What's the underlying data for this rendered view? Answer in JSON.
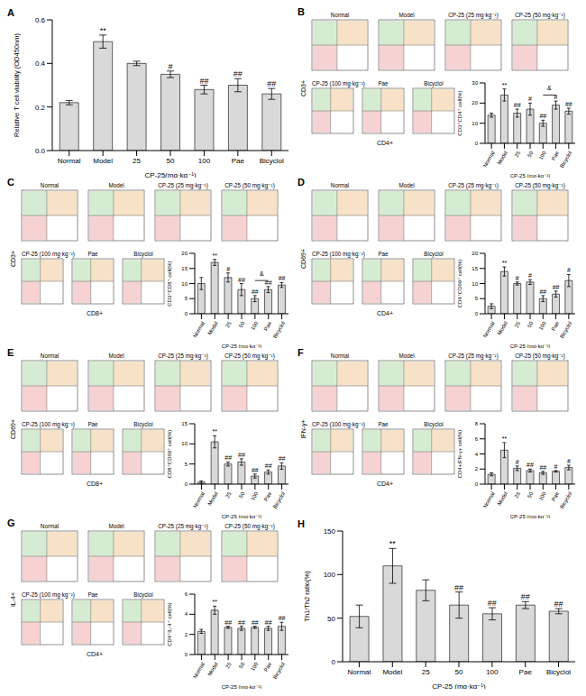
{
  "chart_data": [
    {
      "panel": "A",
      "type": "bar",
      "y_label": "Relative T cell viability (OD450nm)",
      "x_label": "CP-25(mg·kg⁻¹)",
      "categories": [
        "Normal",
        "Model",
        "25",
        "50",
        "100",
        "Pae",
        "Bicyclol"
      ],
      "values": [
        0.22,
        0.5,
        0.4,
        0.35,
        0.28,
        0.3,
        0.26
      ],
      "error": [
        0.01,
        0.03,
        0.01,
        0.015,
        0.02,
        0.03,
        0.025
      ],
      "annotations": [
        null,
        "**",
        null,
        "#",
        "##",
        "##",
        "##"
      ],
      "color": "#d9d9d9",
      "ylim": [
        0,
        0.6
      ],
      "yticks": [
        {
          "value": 0,
          "label": "0.0"
        },
        0.2,
        0.4,
        0.6
      ]
    },
    {
      "panel": "B",
      "type": "bar",
      "flow_plots": {
        "titles": [
          "Normal",
          "Model",
          "CP-25 (25 mg·kg⁻¹)",
          "CP-25 (50 mg·kg⁻¹)",
          "CP-25 (100 mg·kg⁻¹)",
          "Pae",
          "Bicyclol"
        ],
        "x_label": "CD4+",
        "y_label": "CD3+"
      },
      "y_label": "CD3⁺CD4⁺ cell(%)",
      "x_label": "CP-25 (mg·kg⁻¹)",
      "categories": [
        "Normal",
        "Model",
        "25",
        "50",
        "100",
        "Pae",
        "Bicyclol"
      ],
      "values": [
        14,
        24,
        15,
        17,
        10,
        19,
        16
      ],
      "error": [
        1,
        3,
        2,
        3,
        1.5,
        2,
        1.5
      ],
      "annotations": [
        null,
        "**",
        "##",
        "#",
        "##",
        "#",
        "##"
      ],
      "bracket": {
        "from": "100",
        "to": "Pae",
        "label": "&"
      },
      "color": "#d9d9d9",
      "ylim": [
        0,
        30
      ],
      "yticks": [
        0,
        10,
        20,
        30
      ]
    },
    {
      "panel": "C",
      "type": "bar",
      "flow_plots": {
        "titles": [
          "Normal",
          "Model",
          "CP-25 (25 mg·kg⁻¹)",
          "CP-25 (50 mg·kg⁻¹)",
          "CP-25 (100 mg·kg⁻¹)",
          "Pae",
          "Bicyclol"
        ],
        "x_label": "CD8+",
        "y_label": "CD3+"
      },
      "y_label": "CD3⁺CD8⁺ cell(%)",
      "x_label": "CP-25 (mg·kg⁻¹)",
      "categories": [
        "Normal",
        "Model",
        "25",
        "50",
        "100",
        "Pae",
        "Bicyclol"
      ],
      "values": [
        10,
        17,
        12,
        8,
        5,
        8,
        9.5
      ],
      "error": [
        2,
        1,
        1.5,
        2,
        1,
        1,
        0.8
      ],
      "annotations": [
        null,
        "**",
        "#",
        "##",
        "##",
        "##",
        "##"
      ],
      "bracket": {
        "from": "100",
        "to": "Pae",
        "label": "&"
      },
      "color": "#d9d9d9",
      "ylim": [
        0,
        20
      ],
      "yticks": [
        0,
        5,
        10,
        15,
        20
      ]
    },
    {
      "panel": "D",
      "type": "bar",
      "flow_plots": {
        "titles": [
          "Normal",
          "Model",
          "CP-25 (25 mg·kg⁻¹)",
          "CP-25 (50 mg·kg⁻¹)",
          "CP-25 (100 mg·kg⁻¹)",
          "Pae",
          "Bicyclol"
        ],
        "x_label": "CD4+",
        "y_label": "CD69+"
      },
      "y_label": "CD4⁺CD69⁺ cell(%)",
      "x_label": "CP-25 (mg·kg⁻¹)",
      "categories": [
        "Normal",
        "Model",
        "25",
        "50",
        "100",
        "Pae",
        "Bicyclol"
      ],
      "values": [
        2.5,
        14,
        10,
        10.5,
        5,
        6.5,
        11
      ],
      "error": [
        0.8,
        1.5,
        0.5,
        0.8,
        1,
        1,
        2
      ],
      "annotations": [
        null,
        "**",
        "#",
        "#",
        "##",
        "##",
        "#"
      ],
      "color": "#d9d9d9",
      "ylim": [
        0,
        20
      ],
      "yticks": [
        0,
        5,
        10,
        15,
        20
      ]
    },
    {
      "panel": "E",
      "type": "bar",
      "flow_plots": {
        "titles": [
          "Normal",
          "Model",
          "CP-25 (25 mg·kg⁻¹)",
          "CP-25 (50 mg·kg⁻¹)",
          "CP-25 (100 mg·kg⁻¹)",
          "Pae",
          "Bicyclol"
        ],
        "x_label": "CD8+",
        "y_label": "CD69+"
      },
      "y_label": "CD8⁺CD69⁺ cell(%)",
      "x_label": "CP-25 (mg·kg⁻¹)",
      "categories": [
        "Normal",
        "Model",
        "25",
        "50",
        "100",
        "Pae",
        "Bicyclol"
      ],
      "values": [
        0.5,
        10.5,
        5,
        5.5,
        2,
        3,
        4.5
      ],
      "error": [
        0.3,
        1.5,
        0.5,
        0.8,
        0.5,
        0.5,
        0.8
      ],
      "annotations": [
        null,
        "**",
        "##",
        "##",
        "##",
        "##",
        "##"
      ],
      "color": "#d9d9d9",
      "ylim": [
        0,
        15
      ],
      "yticks": [
        0,
        5,
        10,
        15
      ]
    },
    {
      "panel": "F",
      "type": "bar",
      "flow_plots": {
        "titles": [
          "Normal",
          "Model",
          "CP-25 (25 mg·kg⁻¹)",
          "CP-25 (50 mg·kg⁻¹)",
          "CP-25 (100 mg·kg⁻¹)",
          "Pae",
          "Bicyclol"
        ],
        "x_label": "CD4+",
        "y_label": "IFN-γ+"
      },
      "y_label": "CD4+IFN-γ+ cell(%)",
      "x_label": "CP-25 (mg·kg⁻¹)",
      "categories": [
        "Normal",
        "Model",
        "25",
        "50",
        "100",
        "Pae",
        "Bicyclol"
      ],
      "values": [
        1.3,
        4.5,
        2.1,
        1.8,
        1.5,
        1.7,
        2.2
      ],
      "error": [
        0.2,
        1,
        0.3,
        0.2,
        0.2,
        0.1,
        0.3
      ],
      "annotations": [
        null,
        "**",
        "#",
        "##",
        "##",
        "#",
        "#"
      ],
      "color": "#d9d9d9",
      "ylim": [
        0,
        8
      ],
      "yticks": [
        0,
        2,
        4,
        6,
        8
      ]
    },
    {
      "panel": "G",
      "type": "bar",
      "flow_plots": {
        "titles": [
          "Normal",
          "Model",
          "CP-25 (25 mg·kg⁻¹)",
          "CP-25 (50 mg·kg⁻¹)",
          "CP-25 (100 mg·kg⁻¹)",
          "Pae",
          "Bicyclol"
        ],
        "x_label": "CD4+",
        "y_label": "IL-4+"
      },
      "y_label": "CD4⁺IL-4⁺ cell(%)",
      "x_label": "CP-25 (mg·kg⁻¹)",
      "categories": [
        "Normal",
        "Model",
        "25",
        "50",
        "100",
        "Pae",
        "Bicyclol"
      ],
      "values": [
        2.3,
        4.4,
        2.7,
        2.6,
        2.7,
        2.6,
        2.8
      ],
      "error": [
        0.2,
        0.4,
        0.1,
        0.2,
        0.1,
        0.2,
        0.4
      ],
      "annotations": [
        null,
        "**",
        "##",
        "##",
        "##",
        "##",
        "##"
      ],
      "color": "#d9d9d9",
      "ylim": [
        0,
        6
      ],
      "yticks": [
        0,
        2,
        4,
        6
      ]
    },
    {
      "panel": "H",
      "type": "bar",
      "y_label": "Th1/Th2 ratio(%)",
      "x_label": "CP-25 (mg·kg⁻¹)",
      "categories": [
        "Normal",
        "Model",
        "25",
        "50",
        "100",
        "Pae",
        "Bicyclol"
      ],
      "values": [
        52,
        110,
        82,
        65,
        55,
        65,
        58
      ],
      "error": [
        13,
        20,
        12,
        15,
        7,
        4,
        3
      ],
      "annotations": [
        null,
        "**",
        null,
        "##",
        "##",
        "##",
        "##"
      ],
      "color": "#d9d9d9",
      "ylim": [
        0,
        150
      ],
      "yticks": [
        0,
        50,
        100,
        150
      ]
    }
  ]
}
